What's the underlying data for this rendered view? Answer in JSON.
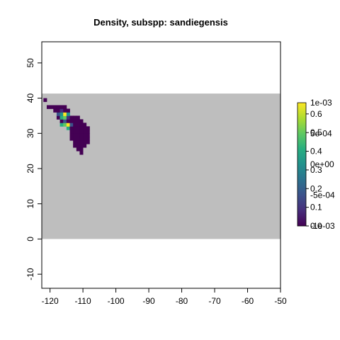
{
  "chart_data": {
    "type": "heatmap",
    "title": "Density, subspp: sandiegensis",
    "xlabel": "",
    "ylabel": "",
    "xlim": [
      -122.5,
      -50
    ],
    "ylim": [
      -14,
      56
    ],
    "x_ticks": [
      "-120",
      "-110",
      "-100",
      "-90",
      "-80",
      "-70",
      "-60",
      "-50"
    ],
    "y_ticks": [
      "-10",
      "0",
      "10",
      "20",
      "30",
      "40",
      "50"
    ],
    "background_region": {
      "x": [
        -122.5,
        -50
      ],
      "y": [
        0,
        41.3
      ],
      "color": "#bebebe"
    },
    "cell_size": 1,
    "cell_columns": [
      {
        "x": -122,
        "y_ranges": [
          [
            39,
            39
          ]
        ]
      },
      {
        "x": -121,
        "y_ranges": [
          [
            37,
            37
          ]
        ]
      },
      {
        "x": -120,
        "y_ranges": [
          [
            37,
            37
          ]
        ]
      },
      {
        "x": -119,
        "y_ranges": [
          [
            36,
            37
          ]
        ]
      },
      {
        "x": -118,
        "y_ranges": [
          [
            34,
            37
          ]
        ]
      },
      {
        "x": -117,
        "y_ranges": [
          [
            32,
            37
          ]
        ]
      },
      {
        "x": -116,
        "y_ranges": [
          [
            32,
            37
          ]
        ]
      },
      {
        "x": -115,
        "y_ranges": [
          [
            31,
            36
          ]
        ]
      },
      {
        "x": -114,
        "y_ranges": [
          [
            28,
            34
          ]
        ]
      },
      {
        "x": -113,
        "y_ranges": [
          [
            26,
            34
          ]
        ]
      },
      {
        "x": -112,
        "y_ranges": [
          [
            25,
            34
          ]
        ]
      },
      {
        "x": -111,
        "y_ranges": [
          [
            24,
            33
          ]
        ]
      },
      {
        "x": -110,
        "y_ranges": [
          [
            26,
            32
          ]
        ]
      },
      {
        "x": -109,
        "y_ranges": [
          [
            27,
            31
          ]
        ]
      }
    ],
    "cell_values": {
      "default": 0.0
    },
    "highlight_cells": [
      {
        "x": -118,
        "y": 35,
        "value": 0.18
      },
      {
        "x": -117,
        "y": 35,
        "value": 0.3
      },
      {
        "x": -117,
        "y": 34,
        "value": 0.45
      },
      {
        "x": -116,
        "y": 35,
        "value": 0.62
      },
      {
        "x": -116,
        "y": 34,
        "value": 0.5
      },
      {
        "x": -116,
        "y": 33,
        "value": 0.15
      },
      {
        "x": -115,
        "y": 35,
        "value": 0.35
      },
      {
        "x": -115,
        "y": 34,
        "value": 0.12
      },
      {
        "x": -117,
        "y": 32,
        "value": 0.4
      },
      {
        "x": -116,
        "y": 32,
        "value": 0.48
      },
      {
        "x": -115,
        "y": 32,
        "value": 0.65
      },
      {
        "x": -115,
        "y": 31,
        "value": 0.38
      },
      {
        "x": -114,
        "y": 32,
        "value": 0.2
      },
      {
        "x": -117,
        "y": 36,
        "value": 0.1
      }
    ],
    "colorbar_ticks_inner": [
      "0.0",
      "0.1",
      "0.2",
      "0.3",
      "0.4",
      "0.5",
      "0.6"
    ],
    "colorbar_ticks_outer": [
      "-1e-03",
      "-5e-04",
      "0e+00",
      "5e-04",
      "1e-03"
    ],
    "colorbar_range": [
      0,
      0.66
    ],
    "colors": [
      "#440154",
      "#3b528b",
      "#21918c",
      "#5ec962",
      "#fde725"
    ]
  }
}
